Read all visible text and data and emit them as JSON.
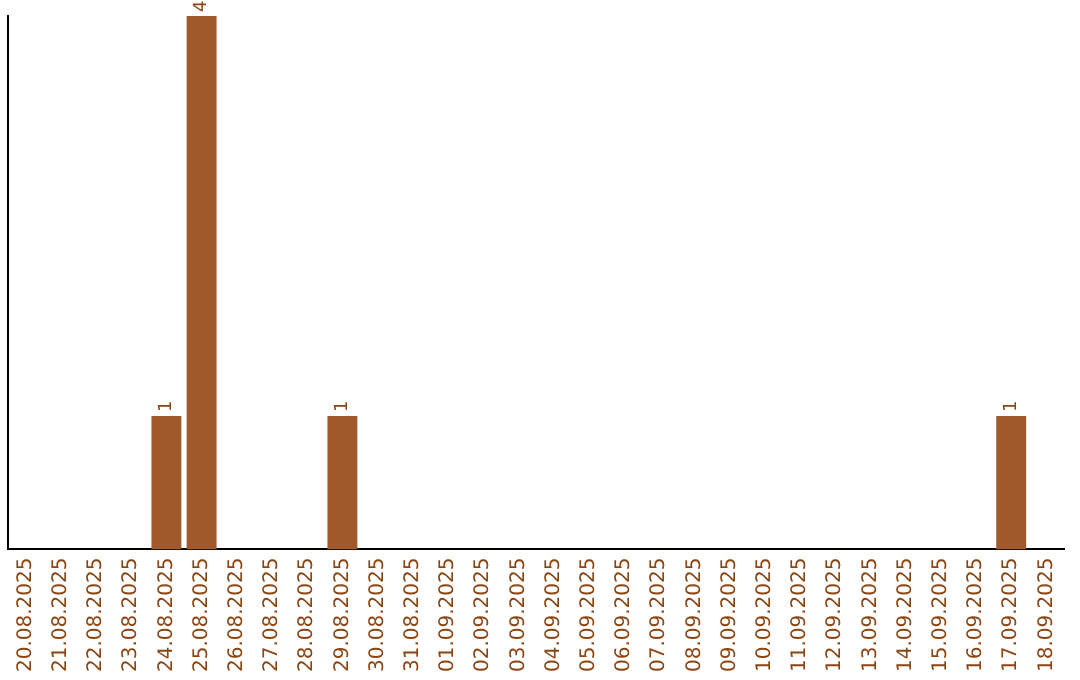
{
  "chart_data": {
    "type": "bar",
    "categories": [
      "20.08.2025",
      "21.08.2025",
      "22.08.2025",
      "23.08.2025",
      "24.08.2025",
      "25.08.2025",
      "26.08.2025",
      "27.08.2025",
      "28.08.2025",
      "29.08.2025",
      "30.08.2025",
      "31.08.2025",
      "01.09.2025",
      "02.09.2025",
      "03.09.2025",
      "04.09.2025",
      "05.09.2025",
      "06.09.2025",
      "07.09.2025",
      "08.09.2025",
      "09.09.2025",
      "10.09.2025",
      "11.09.2025",
      "12.09.2025",
      "13.09.2025",
      "14.09.2025",
      "15.09.2025",
      "16.09.2025",
      "17.09.2025",
      "18.09.2025"
    ],
    "values": [
      0,
      0,
      0,
      0,
      1,
      4,
      0,
      0,
      0,
      1,
      0,
      0,
      0,
      0,
      0,
      0,
      0,
      0,
      0,
      0,
      0,
      0,
      0,
      0,
      0,
      0,
      0,
      0,
      1,
      0
    ],
    "value_labels": [
      null,
      null,
      null,
      null,
      "1",
      "4",
      null,
      null,
      null,
      "1",
      null,
      null,
      null,
      null,
      null,
      null,
      null,
      null,
      null,
      null,
      null,
      null,
      null,
      null,
      null,
      null,
      null,
      null,
      "1",
      null
    ],
    "color": "#a0592a",
    "grid": false,
    "legend": false,
    "tick_labels": "x"
  }
}
